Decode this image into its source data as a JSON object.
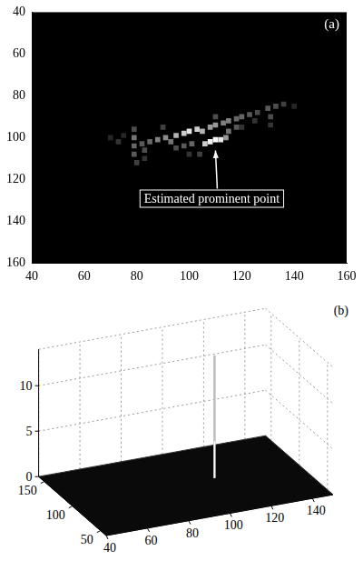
{
  "chart_data": [
    {
      "type": "heatmap",
      "panel": "(a)",
      "xlim": [
        40,
        160
      ],
      "xticks": [
        40,
        60,
        80,
        100,
        120,
        140,
        160
      ],
      "ylim": [
        40,
        160
      ],
      "yticks": [
        40,
        60,
        80,
        100,
        120,
        140,
        160
      ],
      "annotation": {
        "text": "Estimated prominent point",
        "x": 110,
        "y": 104
      },
      "cells": [
        [
          70,
          100,
          0.15
        ],
        [
          73,
          102,
          0.2
        ],
        [
          75,
          99,
          0.15
        ],
        [
          90,
          95,
          0.25
        ],
        [
          100,
          108,
          0.2
        ],
        [
          104,
          108,
          0.25
        ],
        [
          120,
          95,
          0.2
        ],
        [
          125,
          92,
          0.2
        ],
        [
          140,
          85,
          0.15
        ],
        [
          110,
          90,
          0.3
        ],
        [
          95,
          105,
          0.3
        ],
        [
          98,
          104,
          0.35
        ],
        [
          101,
          103,
          0.4
        ],
        [
          79,
          96,
          0.3
        ],
        [
          79,
          100,
          0.45
        ],
        [
          79,
          104,
          0.4
        ],
        [
          79,
          108,
          0.35
        ],
        [
          80,
          112,
          0.25
        ],
        [
          83,
          106,
          0.3
        ],
        [
          83,
          110,
          0.2
        ],
        [
          131,
          90,
          0.3
        ],
        [
          131,
          94,
          0.2
        ],
        [
          82,
          103,
          0.35
        ],
        [
          85,
          102,
          0.4
        ],
        [
          88,
          101,
          0.5
        ],
        [
          91,
          100,
          0.55
        ],
        [
          93,
          102,
          0.45
        ],
        [
          95,
          99,
          0.7
        ],
        [
          98,
          98,
          0.8
        ],
        [
          100,
          97,
          0.9
        ],
        [
          103,
          96,
          0.8
        ],
        [
          105,
          97,
          0.7
        ],
        [
          108,
          95,
          0.6
        ],
        [
          110,
          94,
          0.6
        ],
        [
          113,
          93,
          0.5
        ],
        [
          115,
          92,
          0.5
        ],
        [
          118,
          91,
          0.4
        ],
        [
          120,
          90,
          0.4
        ],
        [
          123,
          89,
          0.35
        ],
        [
          126,
          88,
          0.3
        ],
        [
          130,
          86,
          0.35
        ],
        [
          133,
          85,
          0.3
        ],
        [
          136,
          84,
          0.25
        ],
        [
          115,
          97,
          0.45
        ],
        [
          118,
          95,
          0.35
        ],
        [
          114,
          100,
          0.6
        ],
        [
          106,
          103,
          0.8
        ],
        [
          112,
          101,
          0.9
        ],
        [
          108,
          102,
          0.95
        ],
        [
          110,
          101,
          1.0
        ]
      ]
    },
    {
      "type": "surface",
      "panel": "(b)",
      "grid": true,
      "xlim": [
        40,
        150
      ],
      "xticks": [
        40,
        60,
        80,
        100,
        120,
        140
      ],
      "ylim": [
        40,
        160
      ],
      "yticks": [
        50,
        100,
        150
      ],
      "zlim": [
        0,
        14
      ],
      "zticks": [
        0,
        5,
        10
      ],
      "peaks": [
        {
          "x": 110,
          "y": 104,
          "z": 13.5
        }
      ]
    }
  ]
}
